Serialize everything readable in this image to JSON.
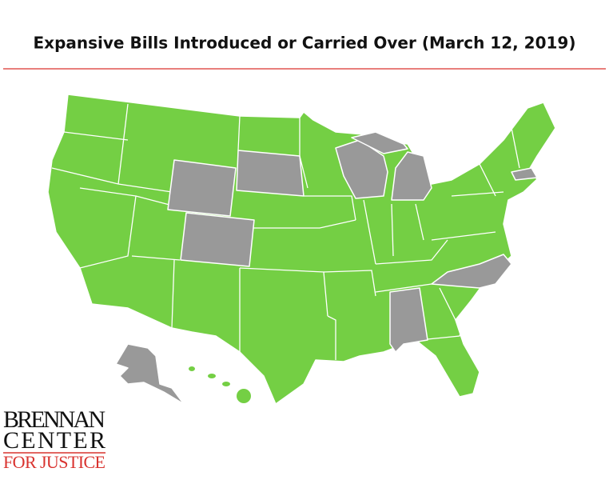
{
  "header": {
    "title": "Expansive Bills Introduced or Carried Over (March 12, 2019)"
  },
  "logo": {
    "line1": "BRENNAN",
    "line2": "CENTER",
    "line3": "FOR JUSTICE"
  }
}
